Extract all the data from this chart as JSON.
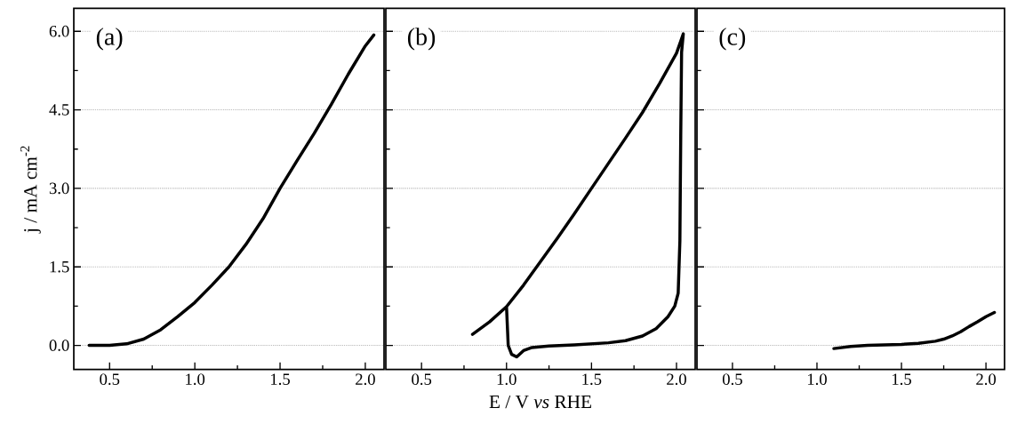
{
  "chart_data": [
    {
      "type": "line",
      "ylabel": "j / mA cm$^{-2}$",
      "annotations": [
        "(a)"
      ],
      "xlim": [
        0.29,
        2.11
      ],
      "ylim": [
        -0.46,
        6.44
      ],
      "grid": "y",
      "xticks": [
        {
          "value": 0.5,
          "label": "0.5"
        },
        {
          "value": 0.75,
          "label": null
        },
        {
          "value": 1.0,
          "label": "1.0"
        },
        {
          "value": 1.25,
          "label": null
        },
        {
          "value": 1.5,
          "label": "1.5"
        },
        {
          "value": 1.75,
          "label": null
        },
        {
          "value": 2.0,
          "label": "2.0"
        }
      ],
      "yticks": [
        {
          "value": 0,
          "label": "0.0"
        },
        {
          "value": 0.75,
          "label": null
        },
        {
          "value": 1.5,
          "label": "1.5"
        },
        {
          "value": 2.25,
          "label": null
        },
        {
          "value": 3.0,
          "label": "3.0"
        },
        {
          "value": 3.75,
          "label": null
        },
        {
          "value": 4.5,
          "label": "4.5"
        },
        {
          "value": 5.25,
          "label": null
        },
        {
          "value": 6.0,
          "label": "6.0"
        }
      ],
      "series": [
        {
          "color": "#000000",
          "x": [
            0.38,
            0.5,
            0.6,
            0.7,
            0.8,
            0.9,
            1.0,
            1.1,
            1.2,
            1.3,
            1.4,
            1.5,
            1.6,
            1.7,
            1.8,
            1.9,
            2.0,
            2.05
          ],
          "values": [
            0,
            0.0,
            0.03,
            0.12,
            0.3,
            0.55,
            0.82,
            1.15,
            1.5,
            1.93,
            2.42,
            3.0,
            3.53,
            4.05,
            4.6,
            5.18,
            5.72,
            5.93
          ]
        }
      ]
    },
    {
      "type": "line",
      "xlabel": "E / V *vs* RHE",
      "annotations": [
        "(b)"
      ],
      "xlim": [
        0.29,
        2.11
      ],
      "ylim": [
        -0.46,
        6.44
      ],
      "grid": "y",
      "tick_labels": "x",
      "xticks": [
        {
          "value": 0.5,
          "label": "0.5"
        },
        {
          "value": 0.75,
          "label": null
        },
        {
          "value": 1.0,
          "label": "1.0"
        },
        {
          "value": 1.25,
          "label": null
        },
        {
          "value": 1.5,
          "label": "1.5"
        },
        {
          "value": 1.75,
          "label": null
        },
        {
          "value": 2.0,
          "label": "2.0"
        }
      ],
      "yticks": [
        0,
        {
          "value": 0.75,
          "label": null
        },
        1.5,
        {
          "value": 2.25,
          "label": null
        },
        3,
        {
          "value": 3.75,
          "label": null
        },
        4.5,
        {
          "value": 5.25,
          "label": null
        },
        6
      ],
      "series": [
        {
          "color": "#000000",
          "x": [
            0.8,
            0.9,
            1.0,
            1.1,
            1.2,
            1.3,
            1.4,
            1.5,
            1.6,
            1.7,
            1.8,
            1.9,
            2.0,
            2.04,
            2.03,
            2.025,
            2.02,
            2.01,
            1.99,
            1.95,
            1.88,
            1.8,
            1.7,
            1.6,
            1.4,
            1.25,
            1.15,
            1.1,
            1.06,
            1.03,
            1.01,
            1.0
          ],
          "values": [
            0.21,
            0.45,
            0.74,
            1.15,
            1.6,
            2.05,
            2.52,
            3.0,
            3.48,
            3.96,
            4.45,
            5.0,
            5.58,
            5.95,
            5.6,
            4.0,
            2.0,
            1.0,
            0.75,
            0.55,
            0.32,
            0.18,
            0.09,
            0.05,
            0.01,
            -0.01,
            -0.04,
            -0.1,
            -0.22,
            -0.17,
            0.0,
            0.74
          ]
        }
      ]
    },
    {
      "type": "line",
      "annotations": [
        "(c)"
      ],
      "xlim": [
        0.29,
        2.11
      ],
      "ylim": [
        -0.46,
        6.44
      ],
      "grid": "y",
      "tick_labels": "x",
      "xticks": [
        {
          "value": 0.5,
          "label": "0.5"
        },
        {
          "value": 0.75,
          "label": null
        },
        {
          "value": 1.0,
          "label": "1.0"
        },
        {
          "value": 1.25,
          "label": null
        },
        {
          "value": 1.5,
          "label": "1.5"
        },
        {
          "value": 1.75,
          "label": null
        },
        {
          "value": 2.0,
          "label": "2.0"
        }
      ],
      "yticks": [
        0,
        {
          "value": 0.75,
          "label": null
        },
        1.5,
        {
          "value": 2.25,
          "label": null
        },
        3,
        {
          "value": 3.75,
          "label": null
        },
        4.5,
        {
          "value": 5.25,
          "label": null
        },
        6
      ],
      "series": [
        {
          "color": "#000000",
          "x": [
            1.1,
            1.2,
            1.3,
            1.4,
            1.5,
            1.6,
            1.7,
            1.75,
            1.8,
            1.85,
            1.9,
            1.95,
            2.0,
            2.05
          ],
          "values": [
            -0.06,
            -0.02,
            0.0,
            0.01,
            0.02,
            0.04,
            0.08,
            0.12,
            0.18,
            0.26,
            0.36,
            0.45,
            0.55,
            0.63
          ]
        }
      ]
    }
  ]
}
